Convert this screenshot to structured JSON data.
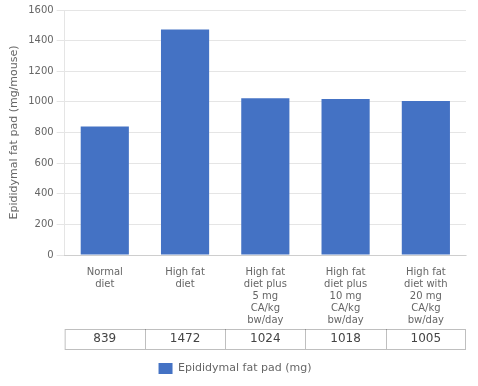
{
  "chart_data": {
    "type": "bar",
    "ylabel": "Epididymal fat pad (mg/mouse)",
    "categories": [
      "Normal\ndiet",
      "High fat\ndiet",
      "High fat\ndiet plus\n5 mg\nCA/kg\nbw/day",
      "High fat\ndiet plus\n10 mg\nCA/kg\nbw/day",
      "High fat\ndiet with\n20 mg\nCA/kg\nbw/day"
    ],
    "series": [
      {
        "name": "Epididymal fat pad (mg)",
        "color": "#4472C4",
        "values": [
          839,
          1472,
          1024,
          1018,
          1005
        ]
      }
    ],
    "ylim": [
      0,
      1600
    ],
    "yticks": [
      0,
      200,
      400,
      600,
      800,
      1000,
      1200,
      1400,
      1600
    ],
    "grid": true,
    "legend": "bottom",
    "data_labels": true
  }
}
